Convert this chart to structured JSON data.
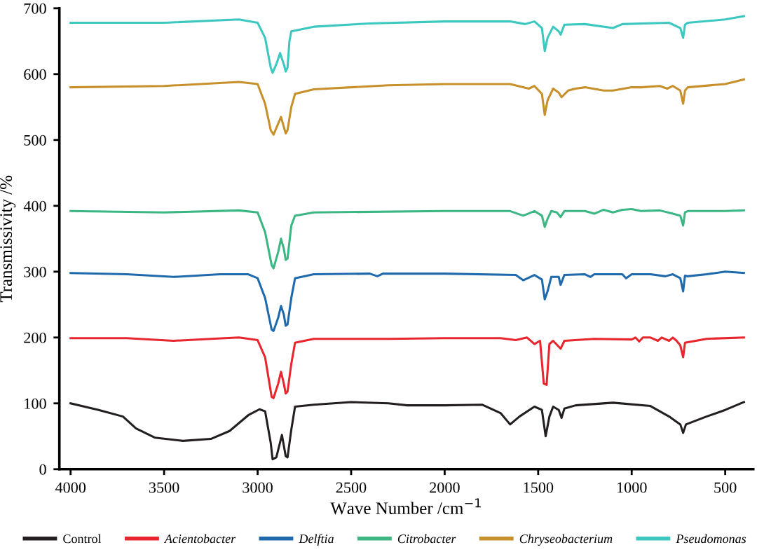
{
  "chart_data": {
    "type": "line",
    "xlabel": "Wave Number /cm$^{−1}$",
    "ylabel": "Transmissivity /%",
    "xlim": [
      4060,
      350
    ],
    "ylim": [
      0,
      700
    ],
    "xticks": [
      4000,
      3500,
      3000,
      2500,
      2000,
      1500,
      1000,
      500
    ],
    "yticks": [
      0,
      100,
      200,
      300,
      400,
      500,
      600,
      700
    ],
    "grid": false,
    "legend": "bottom",
    "marker": "none",
    "line_style": "solid",
    "series": [
      {
        "name": "Control",
        "color": "#231f20",
        "x": [
          4000,
          3850,
          3720,
          3650,
          3550,
          3400,
          3250,
          3150,
          3050,
          2990,
          2960,
          2930,
          2920,
          2900,
          2870,
          2850,
          2840,
          2820,
          2800,
          2700,
          2500,
          2300,
          2200,
          2000,
          1800,
          1700,
          1650,
          1600,
          1520,
          1480,
          1460,
          1440,
          1420,
          1390,
          1375,
          1360,
          1300,
          1100,
          900,
          800,
          740,
          725,
          710,
          600,
          500,
          400
        ],
        "values": [
          100,
          90,
          80,
          62,
          48,
          43,
          46,
          58,
          82,
          91,
          88,
          40,
          15,
          18,
          52,
          20,
          18,
          60,
          95,
          98,
          102,
          100,
          97,
          97,
          98,
          85,
          68,
          80,
          95,
          90,
          50,
          80,
          95,
          90,
          78,
          92,
          97,
          101,
          96,
          80,
          68,
          55,
          68,
          80,
          90,
          102
        ]
      },
      {
        "name": "Acientobacter",
        "color": "#e8262e",
        "x": [
          4000,
          3700,
          3450,
          3250,
          3100,
          3000,
          2960,
          2925,
          2915,
          2890,
          2875,
          2860,
          2850,
          2840,
          2820,
          2800,
          2700,
          2300,
          2000,
          1700,
          1620,
          1560,
          1520,
          1490,
          1470,
          1455,
          1440,
          1420,
          1380,
          1360,
          1200,
          1000,
          980,
          960,
          940,
          900,
          860,
          840,
          800,
          780,
          760,
          740,
          725,
          715,
          600,
          400
        ],
        "values": [
          199,
          199,
          195,
          198,
          200,
          196,
          170,
          110,
          108,
          130,
          148,
          130,
          115,
          118,
          160,
          192,
          198,
          198,
          199,
          199,
          196,
          200,
          190,
          195,
          130,
          128,
          190,
          195,
          183,
          195,
          198,
          197,
          200,
          194,
          200,
          200,
          195,
          200,
          195,
          200,
          195,
          188,
          170,
          192,
          198,
          200
        ]
      },
      {
        "name": "Delftia",
        "color": "#1f6aad",
        "x": [
          4000,
          3700,
          3450,
          3200,
          3050,
          3000,
          2960,
          2925,
          2915,
          2890,
          2875,
          2860,
          2850,
          2840,
          2820,
          2800,
          2700,
          2400,
          2360,
          2330,
          2000,
          1620,
          1580,
          1520,
          1480,
          1465,
          1450,
          1430,
          1390,
          1380,
          1360,
          1250,
          1220,
          1200,
          1050,
          1030,
          1000,
          900,
          820,
          780,
          740,
          725,
          715,
          700,
          600,
          500,
          400
        ],
        "values": [
          298,
          296,
          292,
          296,
          296,
          290,
          260,
          212,
          210,
          230,
          248,
          235,
          218,
          220,
          260,
          290,
          296,
          297,
          293,
          297,
          297,
          295,
          287,
          295,
          288,
          258,
          270,
          292,
          292,
          280,
          295,
          296,
          292,
          296,
          296,
          290,
          296,
          296,
          293,
          296,
          290,
          270,
          294,
          293,
          296,
          300,
          298
        ]
      },
      {
        "name": "Citrobacter",
        "color": "#3cb784",
        "x": [
          4000,
          3500,
          3100,
          3000,
          2960,
          2925,
          2915,
          2890,
          2875,
          2860,
          2850,
          2840,
          2820,
          2800,
          2700,
          2000,
          1650,
          1580,
          1520,
          1480,
          1465,
          1450,
          1430,
          1400,
          1380,
          1360,
          1250,
          1200,
          1150,
          1100,
          1050,
          1000,
          950,
          850,
          780,
          740,
          725,
          715,
          700,
          500,
          400
        ],
        "values": [
          392,
          390,
          393,
          390,
          360,
          310,
          305,
          330,
          350,
          335,
          318,
          320,
          370,
          385,
          390,
          392,
          392,
          385,
          392,
          385,
          368,
          380,
          392,
          390,
          383,
          392,
          392,
          388,
          394,
          390,
          394,
          395,
          392,
          393,
          388,
          385,
          370,
          390,
          392,
          392,
          393
        ]
      },
      {
        "name": "Chryseobacterium",
        "color": "#c8902a",
        "x": [
          4000,
          3500,
          3100,
          3000,
          2960,
          2930,
          2915,
          2890,
          2875,
          2860,
          2850,
          2840,
          2820,
          2800,
          2700,
          2300,
          2000,
          1650,
          1550,
          1520,
          1480,
          1465,
          1450,
          1420,
          1390,
          1375,
          1340,
          1300,
          1250,
          1150,
          1100,
          1000,
          950,
          850,
          810,
          780,
          740,
          725,
          715,
          700,
          500,
          400
        ],
        "values": [
          580,
          582,
          588,
          585,
          555,
          515,
          508,
          525,
          535,
          520,
          510,
          515,
          550,
          570,
          577,
          583,
          585,
          585,
          578,
          582,
          570,
          538,
          560,
          578,
          572,
          565,
          575,
          578,
          580,
          575,
          575,
          580,
          580,
          582,
          578,
          582,
          575,
          555,
          575,
          580,
          585,
          592
        ]
      },
      {
        "name": "Pseudomonas",
        "color": "#3cc8c0",
        "x": [
          4000,
          3500,
          3100,
          3000,
          2960,
          2930,
          2920,
          2900,
          2880,
          2860,
          2850,
          2840,
          2830,
          2820,
          2700,
          2400,
          2000,
          1650,
          1570,
          1520,
          1480,
          1465,
          1450,
          1420,
          1390,
          1380,
          1360,
          1250,
          1100,
          1050,
          800,
          740,
          725,
          715,
          700,
          500,
          400
        ],
        "values": [
          678,
          678,
          683,
          678,
          655,
          610,
          602,
          615,
          632,
          615,
          604,
          610,
          650,
          665,
          672,
          677,
          680,
          680,
          676,
          680,
          670,
          635,
          655,
          672,
          665,
          660,
          675,
          676,
          670,
          676,
          678,
          670,
          655,
          675,
          678,
          683,
          688
        ]
      }
    ]
  }
}
